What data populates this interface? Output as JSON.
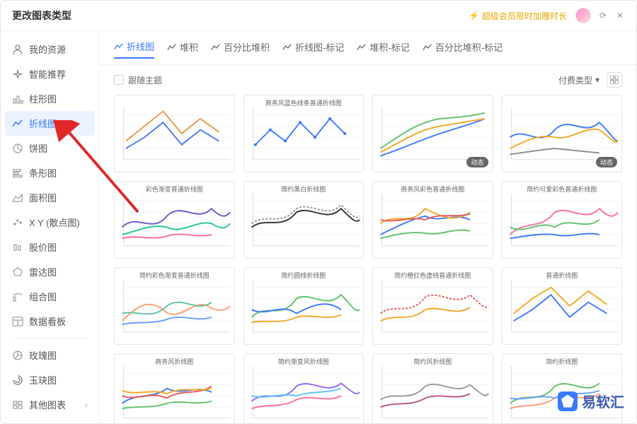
{
  "window": {
    "title": "更改图表类型"
  },
  "vip": {
    "label": "超级会员限时加赠时长"
  },
  "sidebar": {
    "items": [
      {
        "label": "我的资源",
        "icon": "user"
      },
      {
        "label": "智能推荐",
        "icon": "sparkle"
      },
      {
        "label": "柱形图",
        "icon": "bar"
      },
      {
        "label": "折线图",
        "icon": "line",
        "selected": true
      },
      {
        "label": "饼图",
        "icon": "pie"
      },
      {
        "label": "条形图",
        "icon": "hbar"
      },
      {
        "label": "面积图",
        "icon": "area"
      },
      {
        "label": "X Y (散点图)",
        "icon": "scatter"
      },
      {
        "label": "股价图",
        "icon": "stock"
      },
      {
        "label": "雷达图",
        "icon": "radar"
      },
      {
        "label": "组合图",
        "icon": "combo"
      },
      {
        "label": "数据看板",
        "icon": "dashboard"
      },
      {
        "label": "玫瑰图",
        "icon": "rose",
        "sep_before": true
      },
      {
        "label": "玉玦图",
        "icon": "jade"
      },
      {
        "label": "其他图表",
        "icon": "more"
      }
    ]
  },
  "tabs": {
    "items": [
      {
        "label": "折线图",
        "active": true
      },
      {
        "label": "堆积"
      },
      {
        "label": "百分比堆积"
      },
      {
        "label": "折线图-标记"
      },
      {
        "label": "堆积-标记"
      },
      {
        "label": "百分比堆积-标记"
      }
    ]
  },
  "toolbar": {
    "follow_theme": "跟随主题",
    "filter_label": "付费类型"
  },
  "thumbs": [
    {
      "title": "",
      "colors": [
        "#4a7ae8",
        "#e89a4a"
      ],
      "badge": null,
      "paths": [
        "M15,70 L40,55 L65,35 L90,65 L115,45 L140,60",
        "M15,60 L40,40 L65,20 L90,50 L115,30 L140,48"
      ]
    },
    {
      "title": "商务风蓝色线条普通折线图",
      "colors": [
        "#3a7afe"
      ],
      "badge": null,
      "markers": true,
      "paths": [
        "M15,65 L35,45 L55,60 L75,35 L95,55 L115,30 L135,50"
      ]
    },
    {
      "title": "",
      "colors": [
        "#3a7afe",
        "#f5a623",
        "#5ec26a"
      ],
      "badge": "动态",
      "paths": [
        "M10,80 C40,70 60,60 90,50 C120,40 140,35 150,30",
        "M10,75 C40,60 60,45 90,40 C120,35 140,32 150,30",
        "M10,70 C40,50 60,35 90,30 C120,28 140,25 150,22"
      ]
    },
    {
      "title": "",
      "colors": [
        "#3a7afe",
        "#f5a623",
        "#888"
      ],
      "badge": "动态",
      "paths": [
        "M10,55 C30,40 50,70 70,45 C90,25 110,55 130,35 C145,50 150,60 155,60",
        "M10,70 C30,60 50,50 70,55 C90,60 110,40 130,45 C145,55 150,65 155,60",
        "M10,78 C30,75 50,72 70,70 C90,72 110,74 130,76"
      ]
    },
    {
      "title": "彩色渐变普通折线图",
      "colors": [
        "#6a5acd",
        "#20c997",
        "#ff6b9d"
      ],
      "paths": [
        "M10,60 C30,40 50,70 70,45 C90,25 110,55 130,35 C145,50 150,45 155,40",
        "M10,70 C30,65 50,55 70,60 C90,70 110,50 130,55 C145,65 150,60 155,55",
        "M10,75 C30,70 50,78 70,72 C90,65 110,75 130,70"
      ]
    },
    {
      "title": "简约黑白折线图",
      "colors": [
        "#333",
        "#999"
      ],
      "dash": [
        false,
        true
      ],
      "paths": [
        "M10,60 C30,45 50,65 70,40 C90,30 110,55 130,35 C145,50 150,55 155,50",
        "M10,55 C30,40 50,60 70,35 C90,25 110,50 130,30 C145,45 150,50 155,45"
      ]
    },
    {
      "title": "商务风彩色普通折线图",
      "colors": [
        "#3a7afe",
        "#f5a623",
        "#5ec26a",
        "#e85a5a"
      ],
      "paths": [
        "M10,70 C30,60 50,50 70,45 C90,55 110,40 130,50",
        "M10,55 C30,40 50,60 70,35 C90,45 110,55 130,40",
        "M10,75 C30,70 50,65 70,68 C90,72 110,60 130,65",
        "M10,50 C30,55 50,45 70,50 C90,40 110,48 130,42"
      ]
    },
    {
      "title": "简约可爱彩色普通折线图",
      "colors": [
        "#ff6b9d",
        "#5ec26a",
        "#3a7afe"
      ],
      "paths": [
        "M10,70 C30,50 50,65 70,40 C90,30 110,55 130,35 C145,50 150,45 155,40",
        "M10,60 C30,70 50,50 70,60 C90,45 110,65 130,50",
        "M10,75 C30,72 50,68 70,70 C90,75 110,65 130,70"
      ]
    },
    {
      "title": "简约彩色渐变普通折线图",
      "colors": [
        "#ff9d6b",
        "#5ec2a0",
        "#6a9dff"
      ],
      "paths": [
        "M10,70 C30,50 45,40 65,55 C85,75 105,40 125,50 C140,60 150,55 155,50",
        "M10,60 C30,55 50,70 70,50 C90,35 110,60 130,45",
        "M10,75 C30,70 50,75 70,68 C90,60 110,72 130,65"
      ]
    },
    {
      "title": "简约圆线折线图",
      "colors": [
        "#5ec26a",
        "#3a7afe",
        "#f5a623"
      ],
      "paths": [
        "M10,65 C30,45 50,70 70,40 C90,30 110,55 130,35 C145,50 150,60 155,55",
        "M10,55 C30,65 50,45 70,60 C90,50 110,40 130,55",
        "M10,72 C30,68 50,75 70,65 C90,60 110,70 130,62"
      ]
    },
    {
      "title": "简约橙红色虚线普通折线图",
      "colors": [
        "#e85a5a",
        "#f5a623"
      ],
      "dash": [
        true,
        false
      ],
      "paths": [
        "M10,60 C30,45 50,65 70,38 C90,28 110,52 130,35 C145,48 150,55 155,50",
        "M10,70 C30,60 50,72 70,55 C90,48 110,65 130,52"
      ]
    },
    {
      "title": "普通折线图",
      "colors": [
        "#3a7afe",
        "#f5a623"
      ],
      "paths": [
        "M15,70 L40,55 L65,35 L90,65 L115,45 L140,60",
        "M15,60 L40,40 L65,25 L90,50 L115,30 L140,48"
      ]
    },
    {
      "title": "商务风折线图",
      "colors": [
        "#3a7afe",
        "#e85a5a",
        "#5ec26a",
        "#f5a623"
      ],
      "paths": [
        "M10,65 C30,50 50,60 70,45 C90,55 110,40 130,50",
        "M10,55 C30,62 50,48 70,58 C90,45 110,55 130,42",
        "M10,72 C30,68 50,72 70,65 C90,60 110,68 130,62",
        "M10,48 C30,55 50,45 70,52 C90,42 110,50 130,45"
      ]
    },
    {
      "title": "简约渐变风折线图",
      "colors": [
        "#8a6bff",
        "#ff6b9d",
        "#5ec2ff"
      ],
      "paths": [
        "M10,62 C30,45 50,68 70,42 C90,30 110,55 130,38 C145,50 150,55 155,50",
        "M10,72 C30,65 50,72 70,60 C90,52 110,65 130,55",
        "M10,55 C30,60 50,50 70,55 C90,48 110,52 130,45"
      ]
    },
    {
      "title": "简约风折线图",
      "colors": [
        "#999",
        "#bb5588"
      ],
      "paths": [
        "M10,60 C30,48 50,65 70,42 C90,32 110,55 130,40 C145,52 150,58 155,52",
        "M10,70 C30,62 50,70 70,58 C90,50 110,62 130,52"
      ]
    },
    {
      "title": "简约折线图",
      "colors": [
        "#5ec26a",
        "#ff9d6b",
        "#6a9dff"
      ],
      "paths": [
        "M10,65 C30,48 50,68 70,42 C90,30 110,55 130,38",
        "M10,72 C30,65 50,72 70,58 C90,50 110,65 130,52",
        "M10,58 C30,62 50,52 70,58 C90,48 110,55 130,48"
      ]
    }
  ],
  "watermark": {
    "text": "易软汇"
  },
  "colors": {
    "accent": "#3a7afe",
    "arrow": "#e02828"
  }
}
